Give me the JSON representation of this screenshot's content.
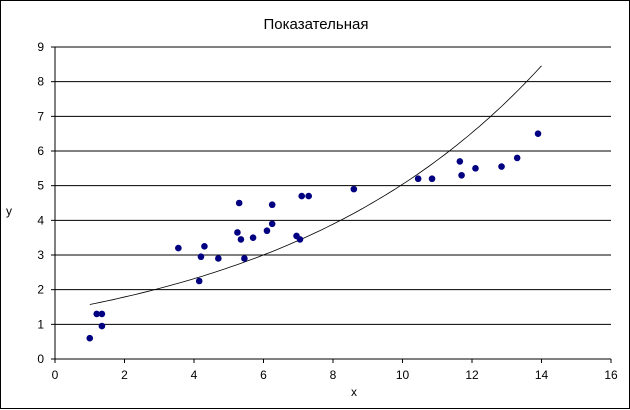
{
  "chart_data": {
    "type": "scatter",
    "title": "Показательная",
    "xlabel": "x",
    "ylabel": "y",
    "xlim": [
      0,
      16
    ],
    "ylim": [
      0,
      9
    ],
    "x_ticks": [
      0,
      2,
      4,
      6,
      8,
      10,
      12,
      14,
      16
    ],
    "y_ticks": [
      0,
      1,
      2,
      3,
      4,
      5,
      6,
      7,
      8,
      9
    ],
    "grid": "horizontal",
    "legend": "none",
    "colors": {
      "points": "#000080",
      "trendline": "#000000",
      "grid": "#000000"
    },
    "series": [
      {
        "points": [
          [
            1.0,
            0.6
          ],
          [
            1.2,
            1.3
          ],
          [
            1.35,
            1.3
          ],
          [
            1.35,
            0.95
          ],
          [
            3.55,
            3.2
          ],
          [
            4.15,
            2.25
          ],
          [
            4.2,
            2.95
          ],
          [
            4.3,
            3.25
          ],
          [
            4.7,
            2.9
          ],
          [
            5.25,
            3.65
          ],
          [
            5.3,
            4.5
          ],
          [
            5.35,
            3.45
          ],
          [
            5.45,
            2.9
          ],
          [
            5.7,
            3.5
          ],
          [
            6.1,
            3.7
          ],
          [
            6.25,
            3.9
          ],
          [
            6.25,
            4.45
          ],
          [
            6.95,
            3.55
          ],
          [
            7.05,
            3.45
          ],
          [
            7.1,
            4.7
          ],
          [
            7.3,
            4.7
          ],
          [
            8.6,
            4.9
          ],
          [
            10.45,
            5.2
          ],
          [
            10.85,
            5.2
          ],
          [
            11.65,
            5.7
          ],
          [
            11.7,
            5.3
          ],
          [
            12.1,
            5.5
          ],
          [
            12.85,
            5.55
          ],
          [
            13.3,
            5.8
          ],
          [
            13.9,
            6.5
          ]
        ]
      }
    ],
    "trendline": {
      "type": "exponential",
      "x_range": [
        1.0,
        14.0
      ],
      "a": 1.38,
      "b": 0.1295
    }
  }
}
